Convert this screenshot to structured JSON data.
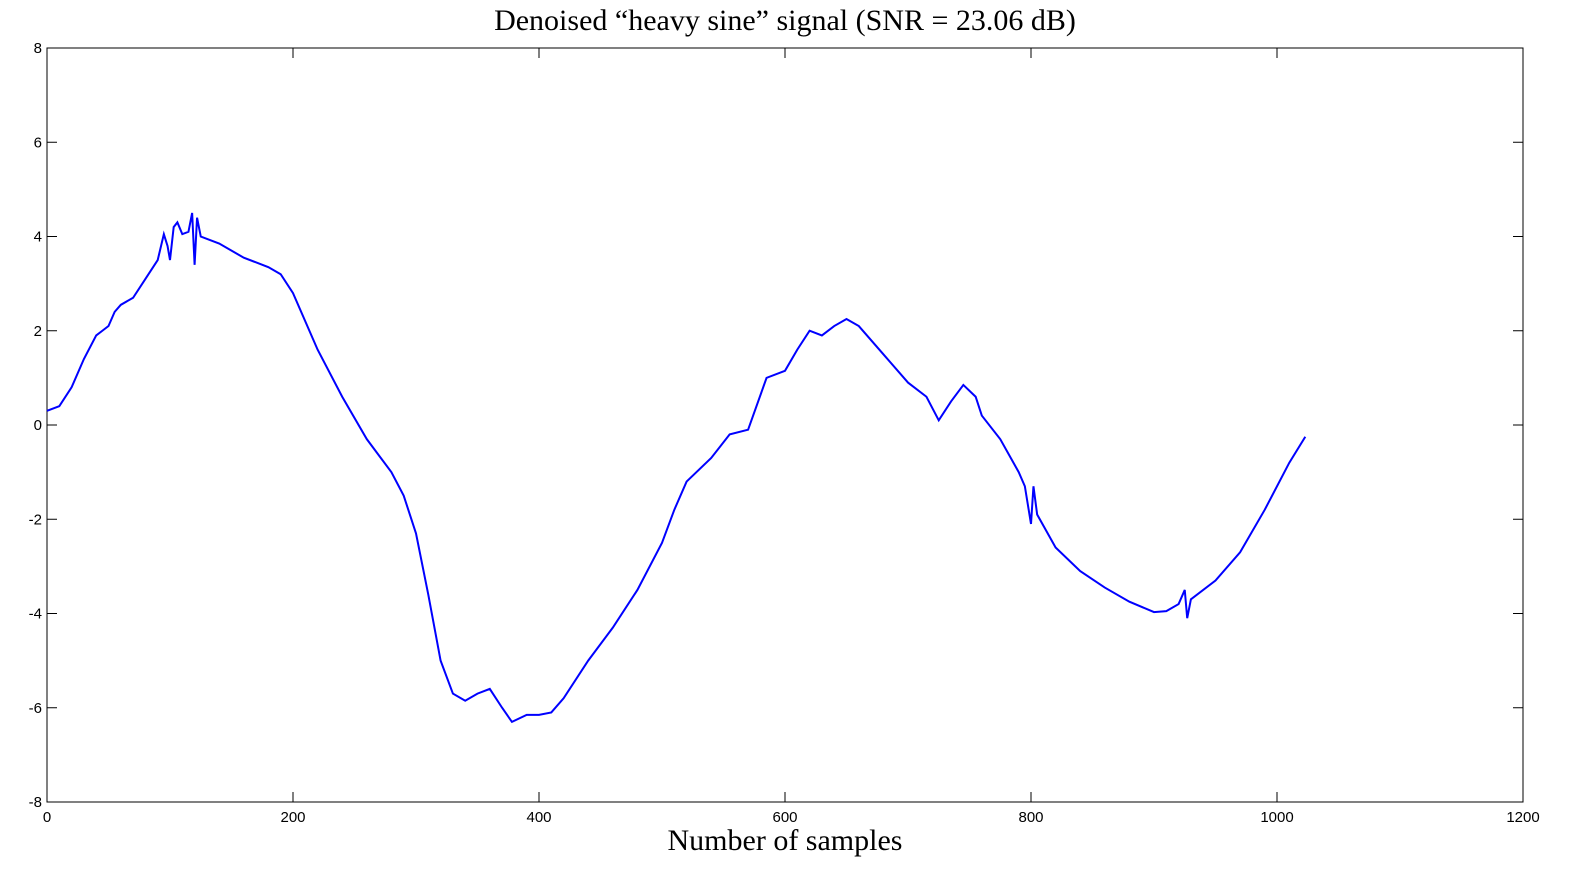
{
  "chart_data": {
    "type": "line",
    "title": "Denoised “heavy sine” signal (SNR = 23.06 dB)",
    "x_label": "Number of samples",
    "series": [
      {
        "color": "#0000ff",
        "x": [
          0,
          10,
          20,
          30,
          40,
          45,
          50,
          55,
          60,
          70,
          80,
          90,
          95,
          98,
          100,
          103,
          106,
          110,
          115,
          118,
          120,
          122,
          125,
          140,
          160,
          180,
          190,
          200,
          220,
          240,
          260,
          280,
          290,
          300,
          310,
          320,
          330,
          340,
          350,
          360,
          370,
          378,
          390,
          400,
          410,
          420,
          440,
          460,
          480,
          500,
          510,
          520,
          540,
          555,
          570,
          585,
          600,
          610,
          620,
          630,
          640,
          650,
          660,
          680,
          700,
          715,
          725,
          735,
          745,
          755,
          760,
          775,
          790,
          795,
          800,
          802,
          805,
          820,
          840,
          860,
          880,
          900,
          910,
          920,
          925,
          927,
          930,
          950,
          970,
          990,
          1010,
          1023
        ],
        "values": [
          0.3,
          0.4,
          0.8,
          1.4,
          1.9,
          2.0,
          2.1,
          2.4,
          2.55,
          2.7,
          3.1,
          3.5,
          4.05,
          3.8,
          3.5,
          4.2,
          4.3,
          4.05,
          4.1,
          4.5,
          3.4,
          4.4,
          4.0,
          3.85,
          3.55,
          3.35,
          3.2,
          2.8,
          1.6,
          0.6,
          -0.3,
          -1.0,
          -1.5,
          -2.3,
          -3.6,
          -5.0,
          -5.7,
          -5.85,
          -5.7,
          -5.6,
          -6.0,
          -6.3,
          -6.15,
          -6.15,
          -6.1,
          -5.8,
          -5.0,
          -4.3,
          -3.5,
          -2.5,
          -1.8,
          -1.2,
          -0.7,
          -0.2,
          -0.1,
          1.0,
          1.15,
          1.6,
          2.0,
          1.9,
          2.1,
          2.25,
          2.1,
          1.5,
          0.9,
          0.6,
          0.1,
          0.5,
          0.85,
          0.6,
          0.2,
          -0.3,
          -1.0,
          -1.3,
          -2.1,
          -1.3,
          -1.9,
          -2.6,
          -3.1,
          -3.45,
          -3.75,
          -3.97,
          -3.95,
          -3.8,
          -3.5,
          -4.1,
          -3.7,
          -3.3,
          -2.7,
          -1.8,
          -0.8,
          -0.25
        ]
      }
    ],
    "xlim": [
      0,
      1200
    ],
    "xticks": [
      0,
      200,
      400,
      600,
      800,
      1000,
      1200
    ],
    "ylim": [
      -8,
      8
    ],
    "yticks": [
      -8,
      -6,
      -4,
      -2,
      0,
      2,
      4,
      6,
      8
    ]
  }
}
